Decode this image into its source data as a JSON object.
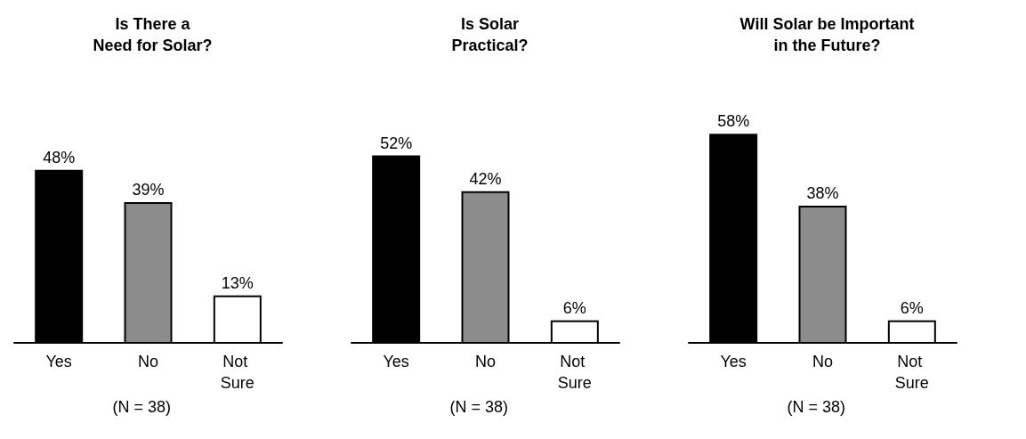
{
  "chart_data": [
    {
      "type": "bar",
      "title": "Is There a\nNeed for Solar?",
      "categories": [
        "Yes",
        "No",
        "Not Sure"
      ],
      "values": [
        48,
        39,
        13
      ],
      "value_labels": [
        "48%",
        "39%",
        "13%"
      ],
      "colors": [
        "#000000",
        "#8c8c8c",
        "#ffffff"
      ],
      "annotations": [
        "(N = 38)"
      ]
    },
    {
      "type": "bar",
      "title": "Is Solar\nPractical?",
      "categories": [
        "Yes",
        "No",
        "Not Sure"
      ],
      "values": [
        52,
        42,
        6
      ],
      "value_labels": [
        "52%",
        "42%",
        "6%"
      ],
      "colors": [
        "#000000",
        "#8c8c8c",
        "#ffffff"
      ],
      "annotations": [
        "(N = 38)"
      ]
    },
    {
      "type": "bar",
      "title": "Will Solar be Important\nin the Future?",
      "categories": [
        "Yes",
        "No",
        "Not Sure"
      ],
      "values": [
        58,
        38,
        6
      ],
      "value_labels": [
        "58%",
        "38%",
        "6%"
      ],
      "colors": [
        "#000000",
        "#8c8c8c",
        "#ffffff"
      ],
      "annotations": [
        "(N = 38)"
      ]
    }
  ]
}
